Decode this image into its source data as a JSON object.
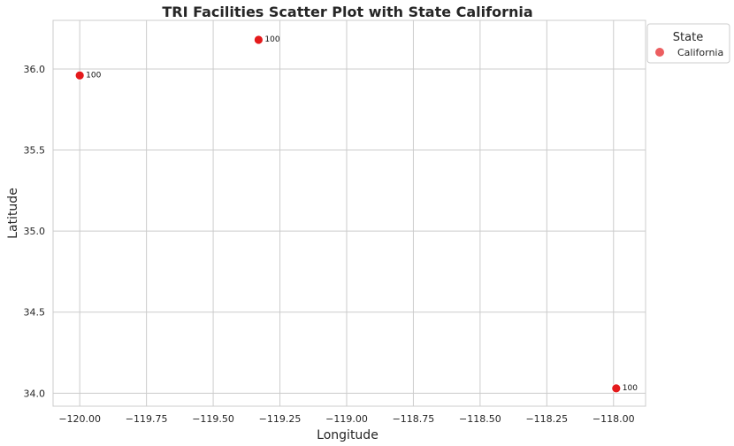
{
  "chart_data": {
    "type": "scatter",
    "title": "TRI Facilities Scatter Plot with State California",
    "xlabel": "Longitude",
    "ylabel": "Latitude",
    "xlim": [
      -120.1,
      -117.88
    ],
    "ylim": [
      33.92,
      36.3
    ],
    "xticks": [
      -120.0,
      -119.75,
      -119.5,
      -119.25,
      -119.0,
      -118.75,
      -118.5,
      -118.25,
      -118.0
    ],
    "xtick_labels": [
      "−120.00",
      "−119.75",
      "−119.50",
      "−119.25",
      "−119.00",
      "−118.75",
      "−118.50",
      "−118.25",
      "−118.00"
    ],
    "yticks": [
      34.0,
      34.5,
      35.0,
      35.5,
      36.0
    ],
    "ytick_labels": [
      "34.0",
      "34.5",
      "35.0",
      "35.5",
      "36.0"
    ],
    "grid": true,
    "legend": {
      "title": "State",
      "placement": "outside-top-right"
    },
    "series": [
      {
        "name": "California",
        "color": "#e41a1c",
        "points": [
          {
            "x": -120.0,
            "y": 35.96,
            "label": "100"
          },
          {
            "x": -119.33,
            "y": 36.18,
            "label": "100"
          },
          {
            "x": -117.99,
            "y": 34.03,
            "label": "100"
          }
        ]
      }
    ]
  }
}
